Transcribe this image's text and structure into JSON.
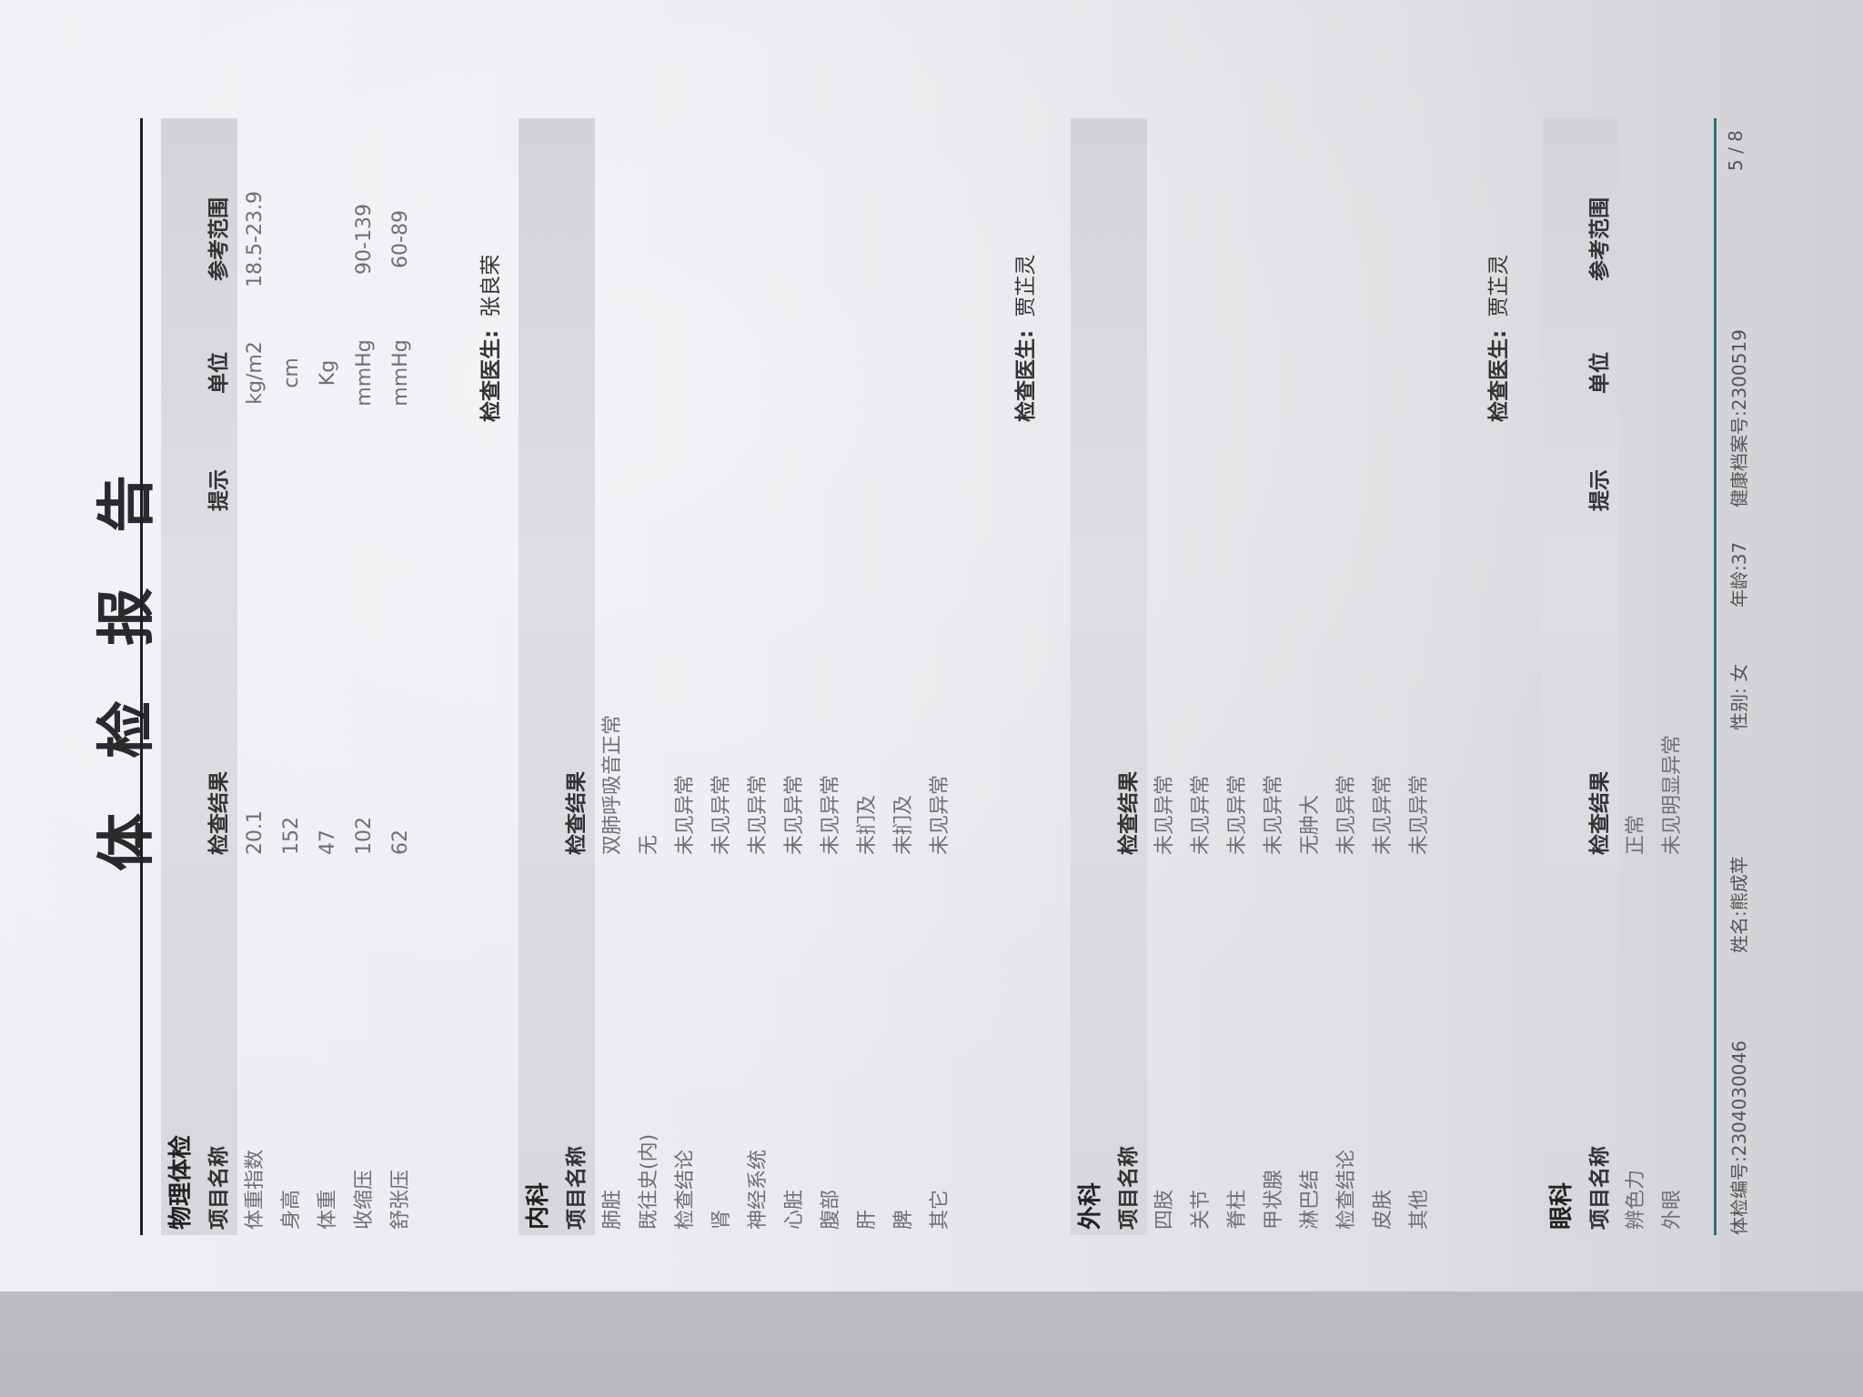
{
  "title": "体检报告",
  "sections": [
    {
      "title": "物理体检",
      "headers": {
        "name": "项目名称",
        "result": "检查结果",
        "hint": "提示",
        "unit": "单位",
        "ref": "参考范围"
      },
      "rows": [
        {
          "name": "体重指数",
          "result": "20.1",
          "hint": "",
          "unit": "kg/m2",
          "ref": "18.5-23.9"
        },
        {
          "name": "身高",
          "result": "152",
          "hint": "",
          "unit": "cm",
          "ref": ""
        },
        {
          "name": "体重",
          "result": "47",
          "hint": "",
          "unit": "Kg",
          "ref": ""
        },
        {
          "name": "收缩压",
          "result": "102",
          "hint": "",
          "unit": "mmHg",
          "ref": "90-139"
        },
        {
          "name": "舒张压",
          "result": "62",
          "hint": "",
          "unit": "mmHg",
          "ref": "60-89"
        }
      ],
      "doctor_label": "检查医生:",
      "doctor": "张良荣"
    },
    {
      "title": "内科",
      "headers": {
        "name": "项目名称",
        "result": "检查结果"
      },
      "rows": [
        {
          "name": "肺脏",
          "result": "双肺呼吸音正常"
        },
        {
          "name": "既往史(内)",
          "result": "无"
        },
        {
          "name": "检查结论",
          "result": "未见异常"
        },
        {
          "name": "肾",
          "result": "未见异常"
        },
        {
          "name": "神经系统",
          "result": "未见异常"
        },
        {
          "name": "心脏",
          "result": "未见异常"
        },
        {
          "name": "腹部",
          "result": "未见异常"
        },
        {
          "name": "肝",
          "result": "未扪及"
        },
        {
          "name": "脾",
          "result": "未扪及"
        },
        {
          "name": "其它",
          "result": "未见异常"
        }
      ],
      "doctor_label": "检查医生:",
      "doctor": "贾芷灵"
    },
    {
      "title": "外科",
      "headers": {
        "name": "项目名称",
        "result": "检查结果"
      },
      "rows": [
        {
          "name": "四肢",
          "result": "未见异常"
        },
        {
          "name": "关节",
          "result": "未见异常"
        },
        {
          "name": "脊柱",
          "result": "未见异常"
        },
        {
          "name": "甲状腺",
          "result": "未见异常"
        },
        {
          "name": "淋巴结",
          "result": "无肿大"
        },
        {
          "name": "检查结论",
          "result": "未见异常"
        },
        {
          "name": "皮肤",
          "result": "未见异常"
        },
        {
          "name": "其他",
          "result": "未见异常"
        }
      ],
      "doctor_label": "检查医生:",
      "doctor": "贾芷灵"
    },
    {
      "title": "眼科",
      "headers": {
        "name": "项目名称",
        "result": "检查结果",
        "hint": "提示",
        "unit": "单位",
        "ref": "参考范围"
      },
      "rows": [
        {
          "name": "辨色力",
          "result": "正常"
        },
        {
          "name": "外眼",
          "result": "未见明显异常"
        }
      ]
    }
  ],
  "footer": {
    "exam_no": "体检编号:2304030046",
    "name": "姓名:熊成苹",
    "gender": "性别: 女",
    "age": "年龄:37",
    "archive_no": "健康档案号:2300519",
    "page": "5 / 8"
  },
  "colors": {
    "top_rule": "#1e1e20",
    "footer_rule": "#2f6f7e",
    "header_band": "#d8dade"
  }
}
